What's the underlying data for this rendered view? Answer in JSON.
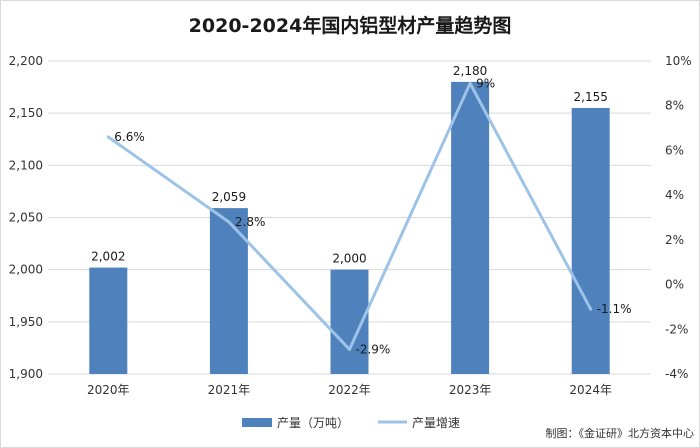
{
  "chart_data": {
    "type": "bar",
    "title": "2020-2024年国内铝型材产量趋势图",
    "categories": [
      "2020年",
      "2021年",
      "2022年",
      "2023年",
      "2024年"
    ],
    "series": [
      {
        "name": "产量（万吨）",
        "kind": "bar",
        "axis": "left",
        "color": "#4f81bd",
        "values": [
          2002,
          2059,
          2000,
          2180,
          2155
        ],
        "labels": [
          "2,002",
          "2,059",
          "2,000",
          "2,180",
          "2,155"
        ]
      },
      {
        "name": "产量增速",
        "kind": "line",
        "axis": "right",
        "color": "#9dc3e6",
        "values": [
          6.6,
          2.8,
          -2.9,
          9,
          -1.1
        ],
        "labels": [
          "6.6%",
          "2.8%",
          "-2.9%",
          "9%",
          "-1.1%"
        ]
      }
    ],
    "y_left": {
      "range": [
        1900,
        2200
      ],
      "ticks": [
        1900,
        1950,
        2000,
        2050,
        2100,
        2150,
        2200
      ],
      "tick_labels": [
        "1,900",
        "1,950",
        "2,000",
        "2,050",
        "2,100",
        "2,150",
        "2,200"
      ]
    },
    "y_right": {
      "range": [
        -4,
        10
      ],
      "ticks": [
        -4,
        -2,
        0,
        2,
        4,
        6,
        8,
        10
      ],
      "tick_labels": [
        "-4%",
        "-2%",
        "0%",
        "2%",
        "4%",
        "6%",
        "8%",
        "10%"
      ]
    },
    "grid": true,
    "legend_position": "bottom-center"
  },
  "credit": "制图：《金证研》北方资本中心"
}
